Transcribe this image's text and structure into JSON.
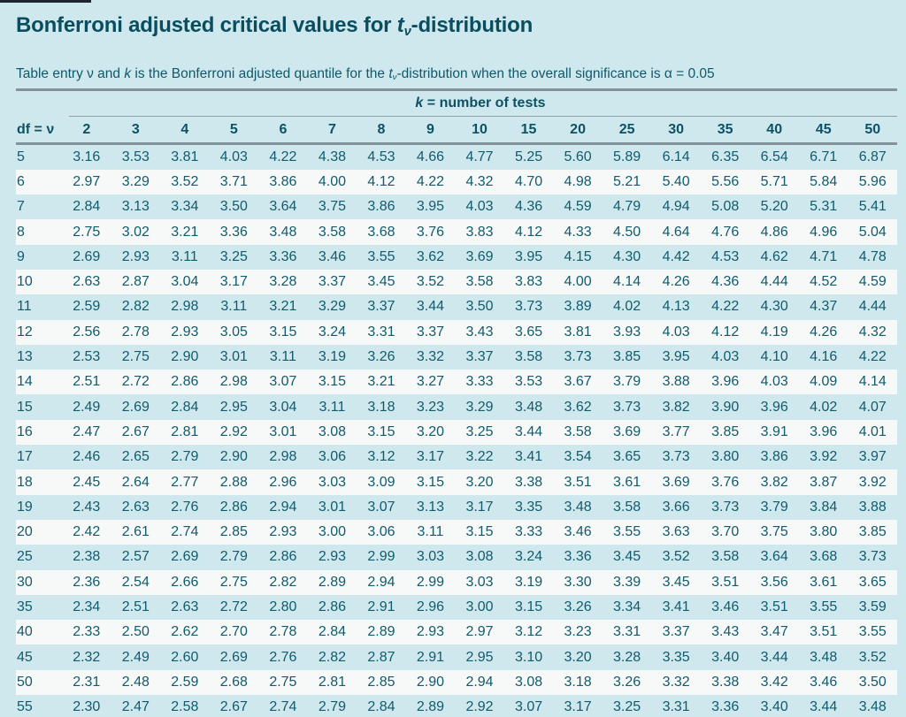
{
  "page": {
    "title": {
      "prefix": "Bonferroni adjusted critical values for ",
      "t_italic": "t",
      "t_sub": "ν",
      "suffix": "-distribution"
    },
    "caption": {
      "part1": "Table entry ν and ",
      "k_italic": "k",
      "part2": " is the Bonferroni adjusted quantile for the ",
      "t_italic": "t",
      "t_sub": "ν",
      "part3": "-distribution when the overall significance is α = 0.05"
    }
  },
  "colors": {
    "background": "#cfe8ee",
    "stripe": "#f7f9f8",
    "text_teal": "#115b6c",
    "title_teal": "#0a4d5e",
    "rule_gray": "#85929a",
    "top_bar_dark": "#1c2530"
  },
  "table": {
    "group_header": {
      "k_italic": "k",
      "label": " = number of tests"
    },
    "df_header": "df = ν",
    "columns": [
      "2",
      "3",
      "4",
      "5",
      "6",
      "7",
      "8",
      "9",
      "10",
      "15",
      "20",
      "25",
      "30",
      "35",
      "40",
      "45",
      "50"
    ],
    "rows": [
      {
        "df": "5",
        "values": [
          "3.16",
          "3.53",
          "3.81",
          "4.03",
          "4.22",
          "4.38",
          "4.53",
          "4.66",
          "4.77",
          "5.25",
          "5.60",
          "5.89",
          "6.14",
          "6.35",
          "6.54",
          "6.71",
          "6.87"
        ]
      },
      {
        "df": "6",
        "values": [
          "2.97",
          "3.29",
          "3.52",
          "3.71",
          "3.86",
          "4.00",
          "4.12",
          "4.22",
          "4.32",
          "4.70",
          "4.98",
          "5.21",
          "5.40",
          "5.56",
          "5.71",
          "5.84",
          "5.96"
        ]
      },
      {
        "df": "7",
        "values": [
          "2.84",
          "3.13",
          "3.34",
          "3.50",
          "3.64",
          "3.75",
          "3.86",
          "3.95",
          "4.03",
          "4.36",
          "4.59",
          "4.79",
          "4.94",
          "5.08",
          "5.20",
          "5.31",
          "5.41"
        ]
      },
      {
        "df": "8",
        "values": [
          "2.75",
          "3.02",
          "3.21",
          "3.36",
          "3.48",
          "3.58",
          "3.68",
          "3.76",
          "3.83",
          "4.12",
          "4.33",
          "4.50",
          "4.64",
          "4.76",
          "4.86",
          "4.96",
          "5.04"
        ]
      },
      {
        "df": "9",
        "values": [
          "2.69",
          "2.93",
          "3.11",
          "3.25",
          "3.36",
          "3.46",
          "3.55",
          "3.62",
          "3.69",
          "3.95",
          "4.15",
          "4.30",
          "4.42",
          "4.53",
          "4.62",
          "4.71",
          "4.78"
        ]
      },
      {
        "df": "10",
        "values": [
          "2.63",
          "2.87",
          "3.04",
          "3.17",
          "3.28",
          "3.37",
          "3.45",
          "3.52",
          "3.58",
          "3.83",
          "4.00",
          "4.14",
          "4.26",
          "4.36",
          "4.44",
          "4.52",
          "4.59"
        ]
      },
      {
        "df": "11",
        "values": [
          "2.59",
          "2.82",
          "2.98",
          "3.11",
          "3.21",
          "3.29",
          "3.37",
          "3.44",
          "3.50",
          "3.73",
          "3.89",
          "4.02",
          "4.13",
          "4.22",
          "4.30",
          "4.37",
          "4.44"
        ]
      },
      {
        "df": "12",
        "values": [
          "2.56",
          "2.78",
          "2.93",
          "3.05",
          "3.15",
          "3.24",
          "3.31",
          "3.37",
          "3.43",
          "3.65",
          "3.81",
          "3.93",
          "4.03",
          "4.12",
          "4.19",
          "4.26",
          "4.32"
        ]
      },
      {
        "df": "13",
        "values": [
          "2.53",
          "2.75",
          "2.90",
          "3.01",
          "3.11",
          "3.19",
          "3.26",
          "3.32",
          "3.37",
          "3.58",
          "3.73",
          "3.85",
          "3.95",
          "4.03",
          "4.10",
          "4.16",
          "4.22"
        ]
      },
      {
        "df": "14",
        "values": [
          "2.51",
          "2.72",
          "2.86",
          "2.98",
          "3.07",
          "3.15",
          "3.21",
          "3.27",
          "3.33",
          "3.53",
          "3.67",
          "3.79",
          "3.88",
          "3.96",
          "4.03",
          "4.09",
          "4.14"
        ]
      },
      {
        "df": "15",
        "values": [
          "2.49",
          "2.69",
          "2.84",
          "2.95",
          "3.04",
          "3.11",
          "3.18",
          "3.23",
          "3.29",
          "3.48",
          "3.62",
          "3.73",
          "3.82",
          "3.90",
          "3.96",
          "4.02",
          "4.07"
        ]
      },
      {
        "df": "16",
        "values": [
          "2.47",
          "2.67",
          "2.81",
          "2.92",
          "3.01",
          "3.08",
          "3.15",
          "3.20",
          "3.25",
          "3.44",
          "3.58",
          "3.69",
          "3.77",
          "3.85",
          "3.91",
          "3.96",
          "4.01"
        ]
      },
      {
        "df": "17",
        "values": [
          "2.46",
          "2.65",
          "2.79",
          "2.90",
          "2.98",
          "3.06",
          "3.12",
          "3.17",
          "3.22",
          "3.41",
          "3.54",
          "3.65",
          "3.73",
          "3.80",
          "3.86",
          "3.92",
          "3.97"
        ]
      },
      {
        "df": "18",
        "values": [
          "2.45",
          "2.64",
          "2.77",
          "2.88",
          "2.96",
          "3.03",
          "3.09",
          "3.15",
          "3.20",
          "3.38",
          "3.51",
          "3.61",
          "3.69",
          "3.76",
          "3.82",
          "3.87",
          "3.92"
        ]
      },
      {
        "df": "19",
        "values": [
          "2.43",
          "2.63",
          "2.76",
          "2.86",
          "2.94",
          "3.01",
          "3.07",
          "3.13",
          "3.17",
          "3.35",
          "3.48",
          "3.58",
          "3.66",
          "3.73",
          "3.79",
          "3.84",
          "3.88"
        ]
      },
      {
        "df": "20",
        "values": [
          "2.42",
          "2.61",
          "2.74",
          "2.85",
          "2.93",
          "3.00",
          "3.06",
          "3.11",
          "3.15",
          "3.33",
          "3.46",
          "3.55",
          "3.63",
          "3.70",
          "3.75",
          "3.80",
          "3.85"
        ]
      },
      {
        "df": "25",
        "values": [
          "2.38",
          "2.57",
          "2.69",
          "2.79",
          "2.86",
          "2.93",
          "2.99",
          "3.03",
          "3.08",
          "3.24",
          "3.36",
          "3.45",
          "3.52",
          "3.58",
          "3.64",
          "3.68",
          "3.73"
        ]
      },
      {
        "df": "30",
        "values": [
          "2.36",
          "2.54",
          "2.66",
          "2.75",
          "2.82",
          "2.89",
          "2.94",
          "2.99",
          "3.03",
          "3.19",
          "3.30",
          "3.39",
          "3.45",
          "3.51",
          "3.56",
          "3.61",
          "3.65"
        ]
      },
      {
        "df": "35",
        "values": [
          "2.34",
          "2.51",
          "2.63",
          "2.72",
          "2.80",
          "2.86",
          "2.91",
          "2.96",
          "3.00",
          "3.15",
          "3.26",
          "3.34",
          "3.41",
          "3.46",
          "3.51",
          "3.55",
          "3.59"
        ]
      },
      {
        "df": "40",
        "values": [
          "2.33",
          "2.50",
          "2.62",
          "2.70",
          "2.78",
          "2.84",
          "2.89",
          "2.93",
          "2.97",
          "3.12",
          "3.23",
          "3.31",
          "3.37",
          "3.43",
          "3.47",
          "3.51",
          "3.55"
        ]
      },
      {
        "df": "45",
        "values": [
          "2.32",
          "2.49",
          "2.60",
          "2.69",
          "2.76",
          "2.82",
          "2.87",
          "2.91",
          "2.95",
          "3.10",
          "3.20",
          "3.28",
          "3.35",
          "3.40",
          "3.44",
          "3.48",
          "3.52"
        ]
      },
      {
        "df": "50",
        "values": [
          "2.31",
          "2.48",
          "2.59",
          "2.68",
          "2.75",
          "2.81",
          "2.85",
          "2.90",
          "2.94",
          "3.08",
          "3.18",
          "3.26",
          "3.32",
          "3.38",
          "3.42",
          "3.46",
          "3.50"
        ]
      },
      {
        "df": "55",
        "values": [
          "2.30",
          "2.47",
          "2.58",
          "2.67",
          "2.74",
          "2.79",
          "2.84",
          "2.89",
          "2.92",
          "3.07",
          "3.17",
          "3.25",
          "3.31",
          "3.36",
          "3.40",
          "3.44",
          "3.48"
        ]
      }
    ]
  }
}
